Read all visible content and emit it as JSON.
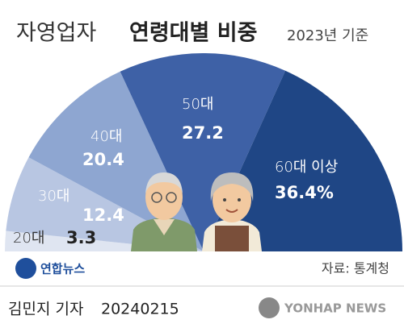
{
  "chart_data": {
    "type": "half-pie",
    "title": "자영업자",
    "title_bold": "연령대별 비중",
    "subtitle": "2023년 기준",
    "categories": [
      "20대",
      "30대",
      "40대",
      "50대",
      "60대 이상"
    ],
    "values": [
      3.3,
      12.4,
      20.4,
      27.2,
      36.4
    ],
    "value_labels": [
      "3.3",
      "12.4",
      "20.4",
      "27.2",
      "36.4%"
    ],
    "colors": [
      "#dfe5f1",
      "#b8c6e2",
      "#8ea6d1",
      "#3e61a6",
      "#1f4685"
    ],
    "source": "자료: 통계청"
  },
  "logo": "연합뉴스",
  "footer": {
    "reporter": "김민지 기자",
    "date": "20240215",
    "agency": "YONHAP NEWS"
  }
}
